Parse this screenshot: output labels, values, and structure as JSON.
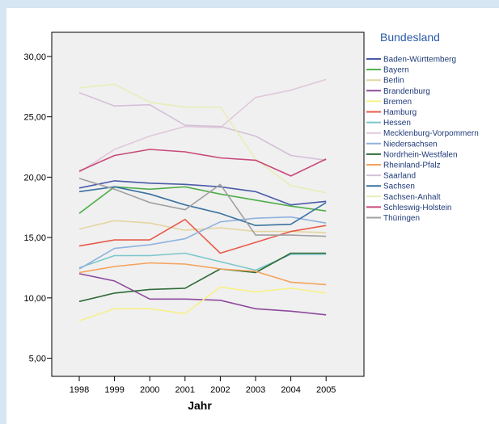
{
  "chart_data": {
    "type": "line",
    "xlabel": "Jahr",
    "ylabel": "",
    "x": [
      "1998",
      "1999",
      "2000",
      "2001",
      "2002",
      "2003",
      "2004",
      "2005"
    ],
    "ylim": [
      3.5,
      32
    ],
    "yticks": [
      "5,00",
      "10,00",
      "15,00",
      "20,00",
      "25,00",
      "30,00"
    ],
    "ytick_values": [
      5,
      10,
      15,
      20,
      25,
      30
    ],
    "legend_title": "Bundesland",
    "legend_position": "right",
    "grid": false,
    "plot_background": "#f0f0f0",
    "series": [
      {
        "name": "Baden-Württemberg",
        "color": "#4a5ba8",
        "values": [
          19.1,
          19.7,
          19.5,
          19.4,
          19.2,
          18.8,
          17.7,
          18.0
        ]
      },
      {
        "name": "Bayern",
        "color": "#4fae4a",
        "values": [
          17.0,
          19.2,
          19.0,
          19.2,
          18.6,
          18.1,
          17.6,
          17.2
        ]
      },
      {
        "name": "Berlin",
        "color": "#e3d6a0",
        "values": [
          15.7,
          16.4,
          16.2,
          15.6,
          15.8,
          15.5,
          15.5,
          15.4
        ]
      },
      {
        "name": "Brandenburg",
        "color": "#8e4a9c",
        "values": [
          12.0,
          11.4,
          9.9,
          9.9,
          9.8,
          9.1,
          8.9,
          8.6
        ]
      },
      {
        "name": "Bremen",
        "color": "#f7f08a",
        "values": [
          8.1,
          9.1,
          9.1,
          8.7,
          10.9,
          10.5,
          10.8,
          10.4
        ]
      },
      {
        "name": "Hamburg",
        "color": "#e85a4a",
        "values": [
          14.3,
          14.8,
          14.8,
          16.5,
          13.7,
          14.6,
          15.5,
          16.0
        ]
      },
      {
        "name": "Hessen",
        "color": "#7cc7cc",
        "values": [
          12.5,
          13.5,
          13.5,
          13.7,
          13.0,
          12.3,
          13.6,
          13.6
        ]
      },
      {
        "name": "Mecklenburg-Vorpommern",
        "color": "#e0c8dc",
        "values": [
          20.4,
          22.3,
          23.4,
          24.2,
          24.1,
          26.6,
          27.2,
          28.1
        ]
      },
      {
        "name": "Niedersachsen",
        "color": "#8fb2df",
        "values": [
          12.4,
          14.1,
          14.4,
          14.9,
          16.3,
          16.6,
          16.7,
          16.2
        ]
      },
      {
        "name": "Nordrhein-Westfalen",
        "color": "#2f6b38",
        "values": [
          9.7,
          10.4,
          10.7,
          10.8,
          12.4,
          12.1,
          13.7,
          13.7
        ]
      },
      {
        "name": "Rheinland-Pfalz",
        "color": "#f4a25a",
        "values": [
          12.1,
          12.6,
          12.9,
          12.8,
          12.4,
          12.2,
          11.3,
          11.1
        ]
      },
      {
        "name": "Saarland",
        "color": "#d4c0d8",
        "values": [
          27.0,
          25.9,
          26.0,
          24.3,
          24.2,
          23.4,
          21.8,
          21.4
        ]
      },
      {
        "name": "Sachsen",
        "color": "#3a72a0",
        "values": [
          18.8,
          19.2,
          18.6,
          17.7,
          17.0,
          16.0,
          16.1,
          17.9
        ]
      },
      {
        "name": "Sachsen-Anhalt",
        "color": "#e8edb8",
        "values": [
          27.4,
          27.7,
          26.2,
          25.8,
          25.8,
          21.5,
          19.3,
          18.7
        ]
      },
      {
        "name": "Schleswig-Holstein",
        "color": "#c8497a",
        "values": [
          20.5,
          21.8,
          22.3,
          22.1,
          21.6,
          21.4,
          20.1,
          21.5
        ]
      },
      {
        "name": "Thüringen",
        "color": "#a0a0a0",
        "values": [
          19.9,
          19.0,
          17.9,
          17.3,
          19.4,
          15.2,
          15.2,
          15.1
        ]
      }
    ]
  }
}
